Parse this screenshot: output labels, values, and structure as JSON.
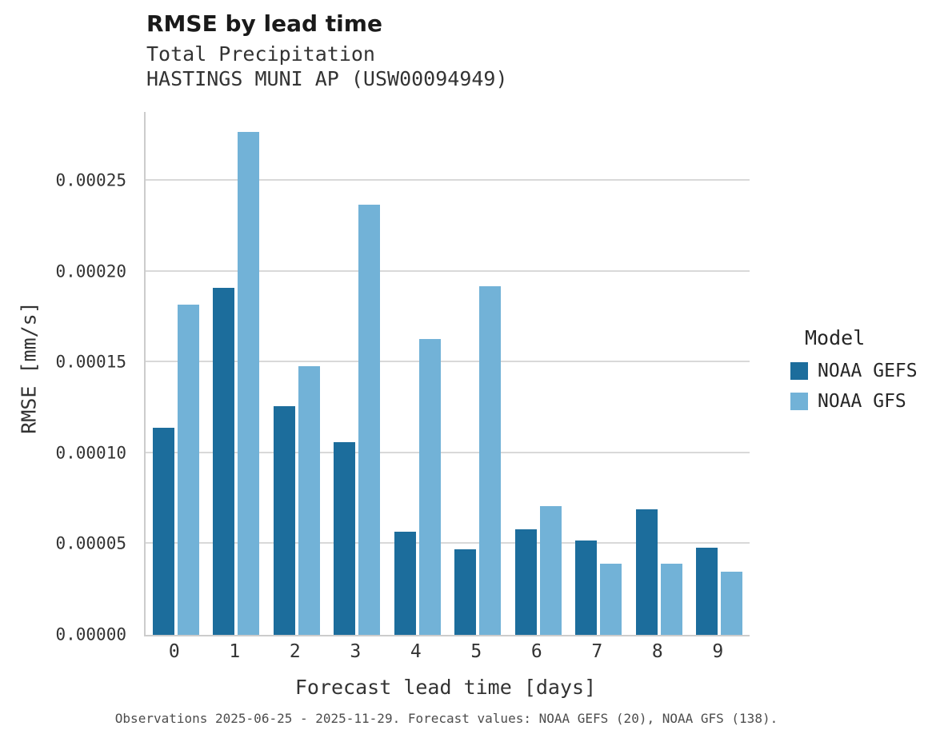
{
  "header": {
    "title": "RMSE by lead time",
    "subtitle1": "Total Precipitation",
    "subtitle2": "HASTINGS MUNI AP (USW00094949)"
  },
  "chart_data": {
    "type": "bar",
    "title": "RMSE by lead time",
    "subtitle": [
      "Total Precipitation",
      "HASTINGS MUNI AP (USW00094949)"
    ],
    "categories": [
      "0",
      "1",
      "2",
      "3",
      "4",
      "5",
      "6",
      "7",
      "8",
      "9"
    ],
    "series": [
      {
        "name": "NOAA GEFS",
        "color": "#1c6d9c",
        "values": [
          0.000114,
          0.000191,
          0.000126,
          0.000106,
          5.7e-05,
          4.7e-05,
          5.8e-05,
          5.2e-05,
          6.9e-05,
          4.8e-05
        ]
      },
      {
        "name": "NOAA GFS",
        "color": "#72b2d7",
        "values": [
          0.000182,
          0.000277,
          0.000148,
          0.000237,
          0.000163,
          0.000192,
          7.1e-05,
          3.9e-05,
          3.9e-05,
          3.5e-05
        ]
      }
    ],
    "xlabel": "Forecast lead time [days]",
    "ylabel": "RMSE [mm/s]",
    "ylim": [
      0,
      0.000288
    ],
    "yticks": [
      0.0,
      5e-05,
      0.0001,
      0.00015,
      0.0002,
      0.00025
    ],
    "ytick_labels": [
      "0.00000",
      "0.00005",
      "0.00010",
      "0.00015",
      "0.00020",
      "0.00025"
    ],
    "grid": true,
    "legend_title": "Model",
    "legend_position": "right"
  },
  "footer": {
    "caption": "Observations 2025-06-25 - 2025-11-29. Forecast values: NOAA GEFS (20), NOAA GFS (138)."
  }
}
